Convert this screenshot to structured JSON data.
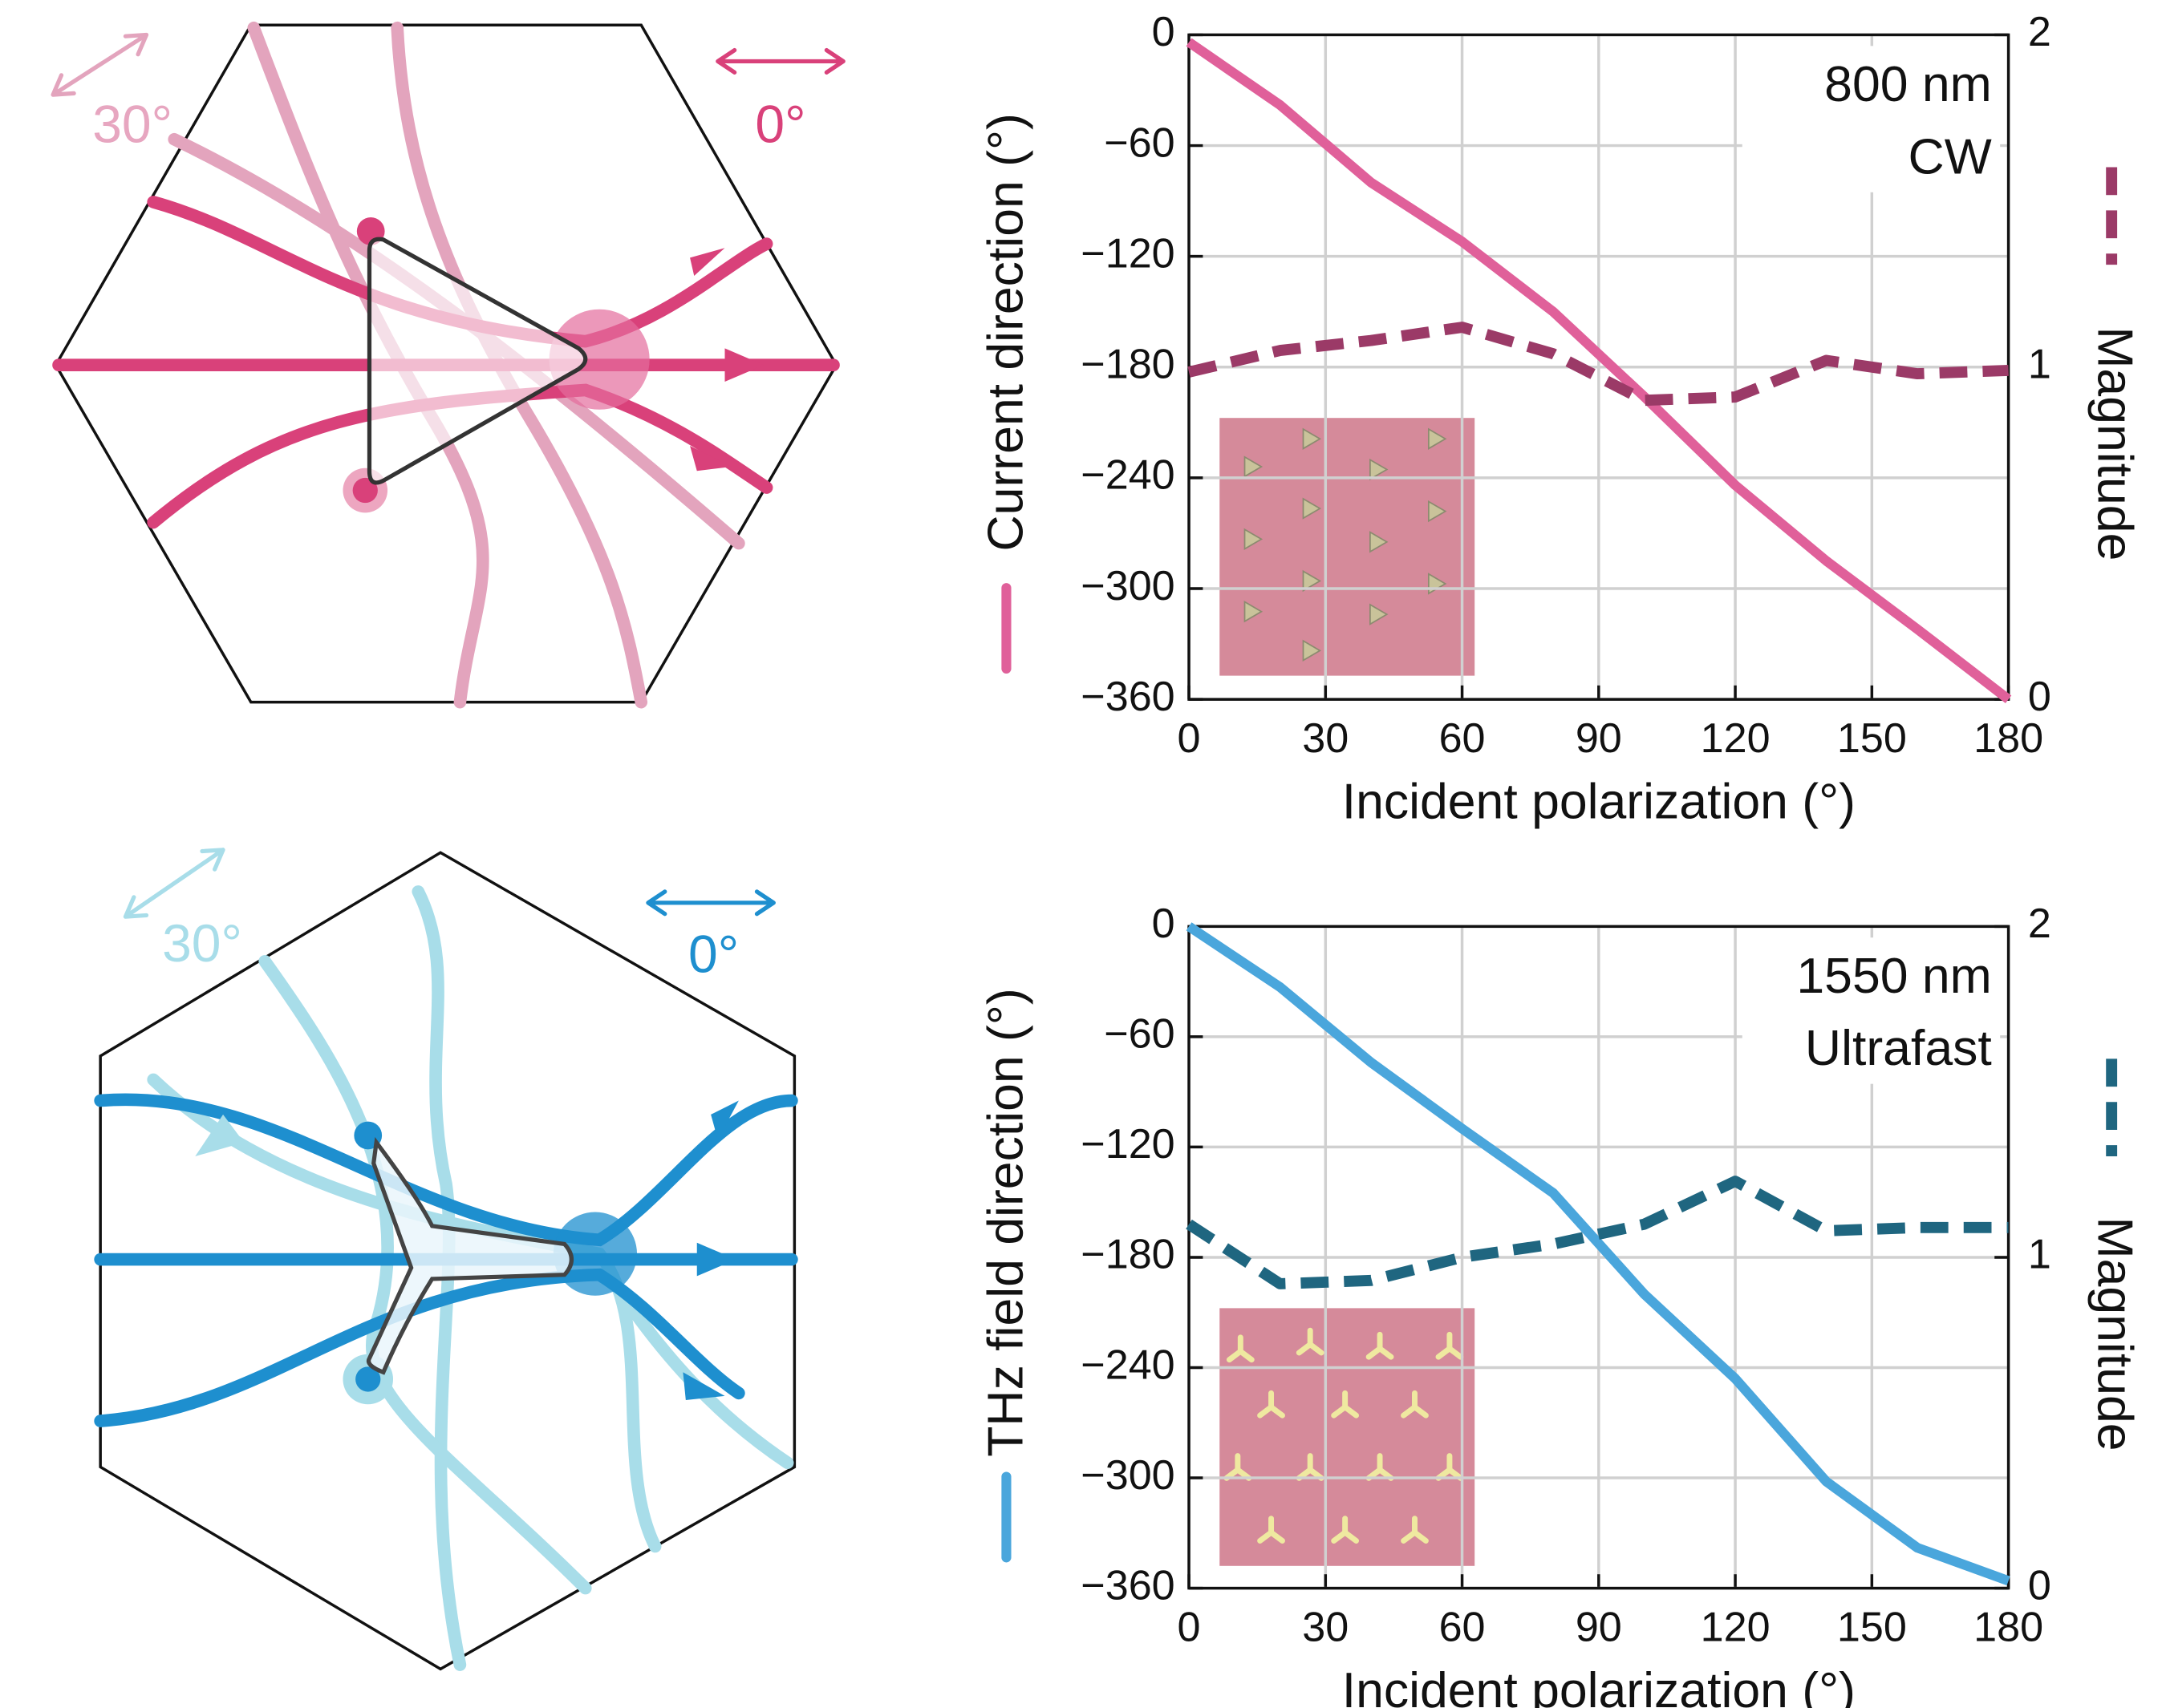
{
  "chart_data": [
    {
      "type": "line",
      "x": [
        0,
        20,
        40,
        60,
        80,
        100,
        120,
        140,
        160,
        180
      ],
      "series": [
        {
          "color": "#e0609a",
          "values": [
            -4,
            -38,
            -80,
            -112,
            -150,
            -196,
            -244,
            -285,
            -322,
            -360
          ]
        },
        {
          "color": "#9b3a67",
          "dashed": true,
          "axis": "y2",
          "values": [
            0.985,
            1.05,
            1.08,
            1.12,
            1.04,
            0.9,
            0.91,
            1.02,
            0.98,
            0.99
          ]
        }
      ],
      "xlabel": "Incident polarization (°)",
      "ylabel": "Current direction (°)",
      "y2label": "Magnitude",
      "annotations": [
        "800 nm",
        "CW"
      ],
      "xlim": [
        0,
        180
      ],
      "xticks": [
        0,
        30,
        60,
        90,
        120,
        150,
        180
      ],
      "ylim": [
        -360,
        0
      ],
      "yticks": [
        0,
        {
          "value": -60,
          "label": "−60"
        },
        {
          "value": -120,
          "label": "−120"
        },
        {
          "value": -180,
          "label": "−180"
        },
        {
          "value": -240,
          "label": "−240"
        },
        {
          "value": -300,
          "label": "−300"
        },
        {
          "value": -360,
          "label": "−360"
        }
      ],
      "y2lim": [
        0,
        2
      ],
      "y2ticks": [
        0,
        1,
        2
      ],
      "grid": true
    },
    {
      "type": "line",
      "x": [
        0,
        20,
        40,
        60,
        80,
        100,
        120,
        140,
        160,
        180
      ],
      "series": [
        {
          "color": "#4aa6dc",
          "values": [
            0,
            -33,
            -74,
            -110,
            -145,
            -200,
            -246,
            -302,
            -338,
            -356
          ]
        },
        {
          "color": "#1f6680",
          "dashed": true,
          "axis": "y2",
          "values": [
            1.1,
            0.92,
            0.93,
            1.0,
            1.04,
            1.1,
            1.23,
            1.08,
            1.09,
            1.09
          ]
        }
      ],
      "xlabel": "Incident polarization (°)",
      "ylabel": "THz field direction (°)",
      "y2label": "Magnitude",
      "annotations": [
        "1550 nm",
        "Ultrafast"
      ],
      "xlim": [
        0,
        180
      ],
      "xticks": [
        0,
        30,
        60,
        90,
        120,
        150,
        180
      ],
      "ylim": [
        -360,
        0
      ],
      "yticks": [
        0,
        {
          "value": -60,
          "label": "−60"
        },
        {
          "value": -120,
          "label": "−120"
        },
        {
          "value": -180,
          "label": "−180"
        },
        {
          "value": -240,
          "label": "−240"
        },
        {
          "value": -300,
          "label": "−300"
        },
        {
          "value": -360,
          "label": "−360"
        }
      ],
      "y2lim": [
        0,
        2
      ],
      "y2ticks": [
        0,
        1,
        2
      ],
      "grid": true
    }
  ],
  "diagrams": [
    {
      "labels": [
        "30°",
        "0°"
      ]
    },
    {
      "labels": [
        "30°",
        "0°"
      ]
    }
  ]
}
